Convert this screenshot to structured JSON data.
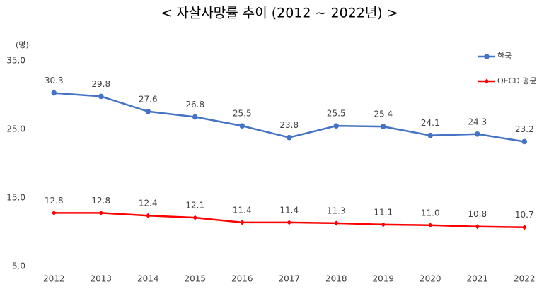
{
  "chart_data": {
    "type": "line",
    "title": "< 자살사망률 추이 (2012 ~ 2022년) >",
    "y_unit": "(명)",
    "categories": [
      "2012",
      "2013",
      "2014",
      "2015",
      "2016",
      "2017",
      "2018",
      "2019",
      "2020",
      "2021",
      "2022"
    ],
    "series": [
      {
        "name": "한국",
        "color": "#4472c4",
        "marker": "circle",
        "values": [
          30.3,
          29.8,
          27.6,
          26.8,
          25.5,
          23.8,
          25.5,
          25.4,
          24.1,
          24.3,
          23.2
        ]
      },
      {
        "name": "OECD 평균",
        "color": "#ff0000",
        "marker": "diamond",
        "values": [
          12.8,
          12.8,
          12.4,
          12.1,
          11.4,
          11.4,
          11.3,
          11.1,
          11.0,
          10.8,
          10.7
        ],
        "value_labels": [
          "12.8",
          "12.8",
          "12.4",
          "12.1",
          "11.4",
          "11.4",
          "11.3",
          "11.1",
          "11.0",
          "10.8",
          "10.7"
        ]
      }
    ],
    "ylim": [
      5,
      35
    ],
    "yticks": [
      {
        "value": 5,
        "label": "5.0"
      },
      {
        "value": 15,
        "label": "15.0"
      },
      {
        "value": 25,
        "label": "25.0"
      },
      {
        "value": 35,
        "label": "35.0"
      }
    ],
    "grid": false,
    "legend": "upper right"
  }
}
